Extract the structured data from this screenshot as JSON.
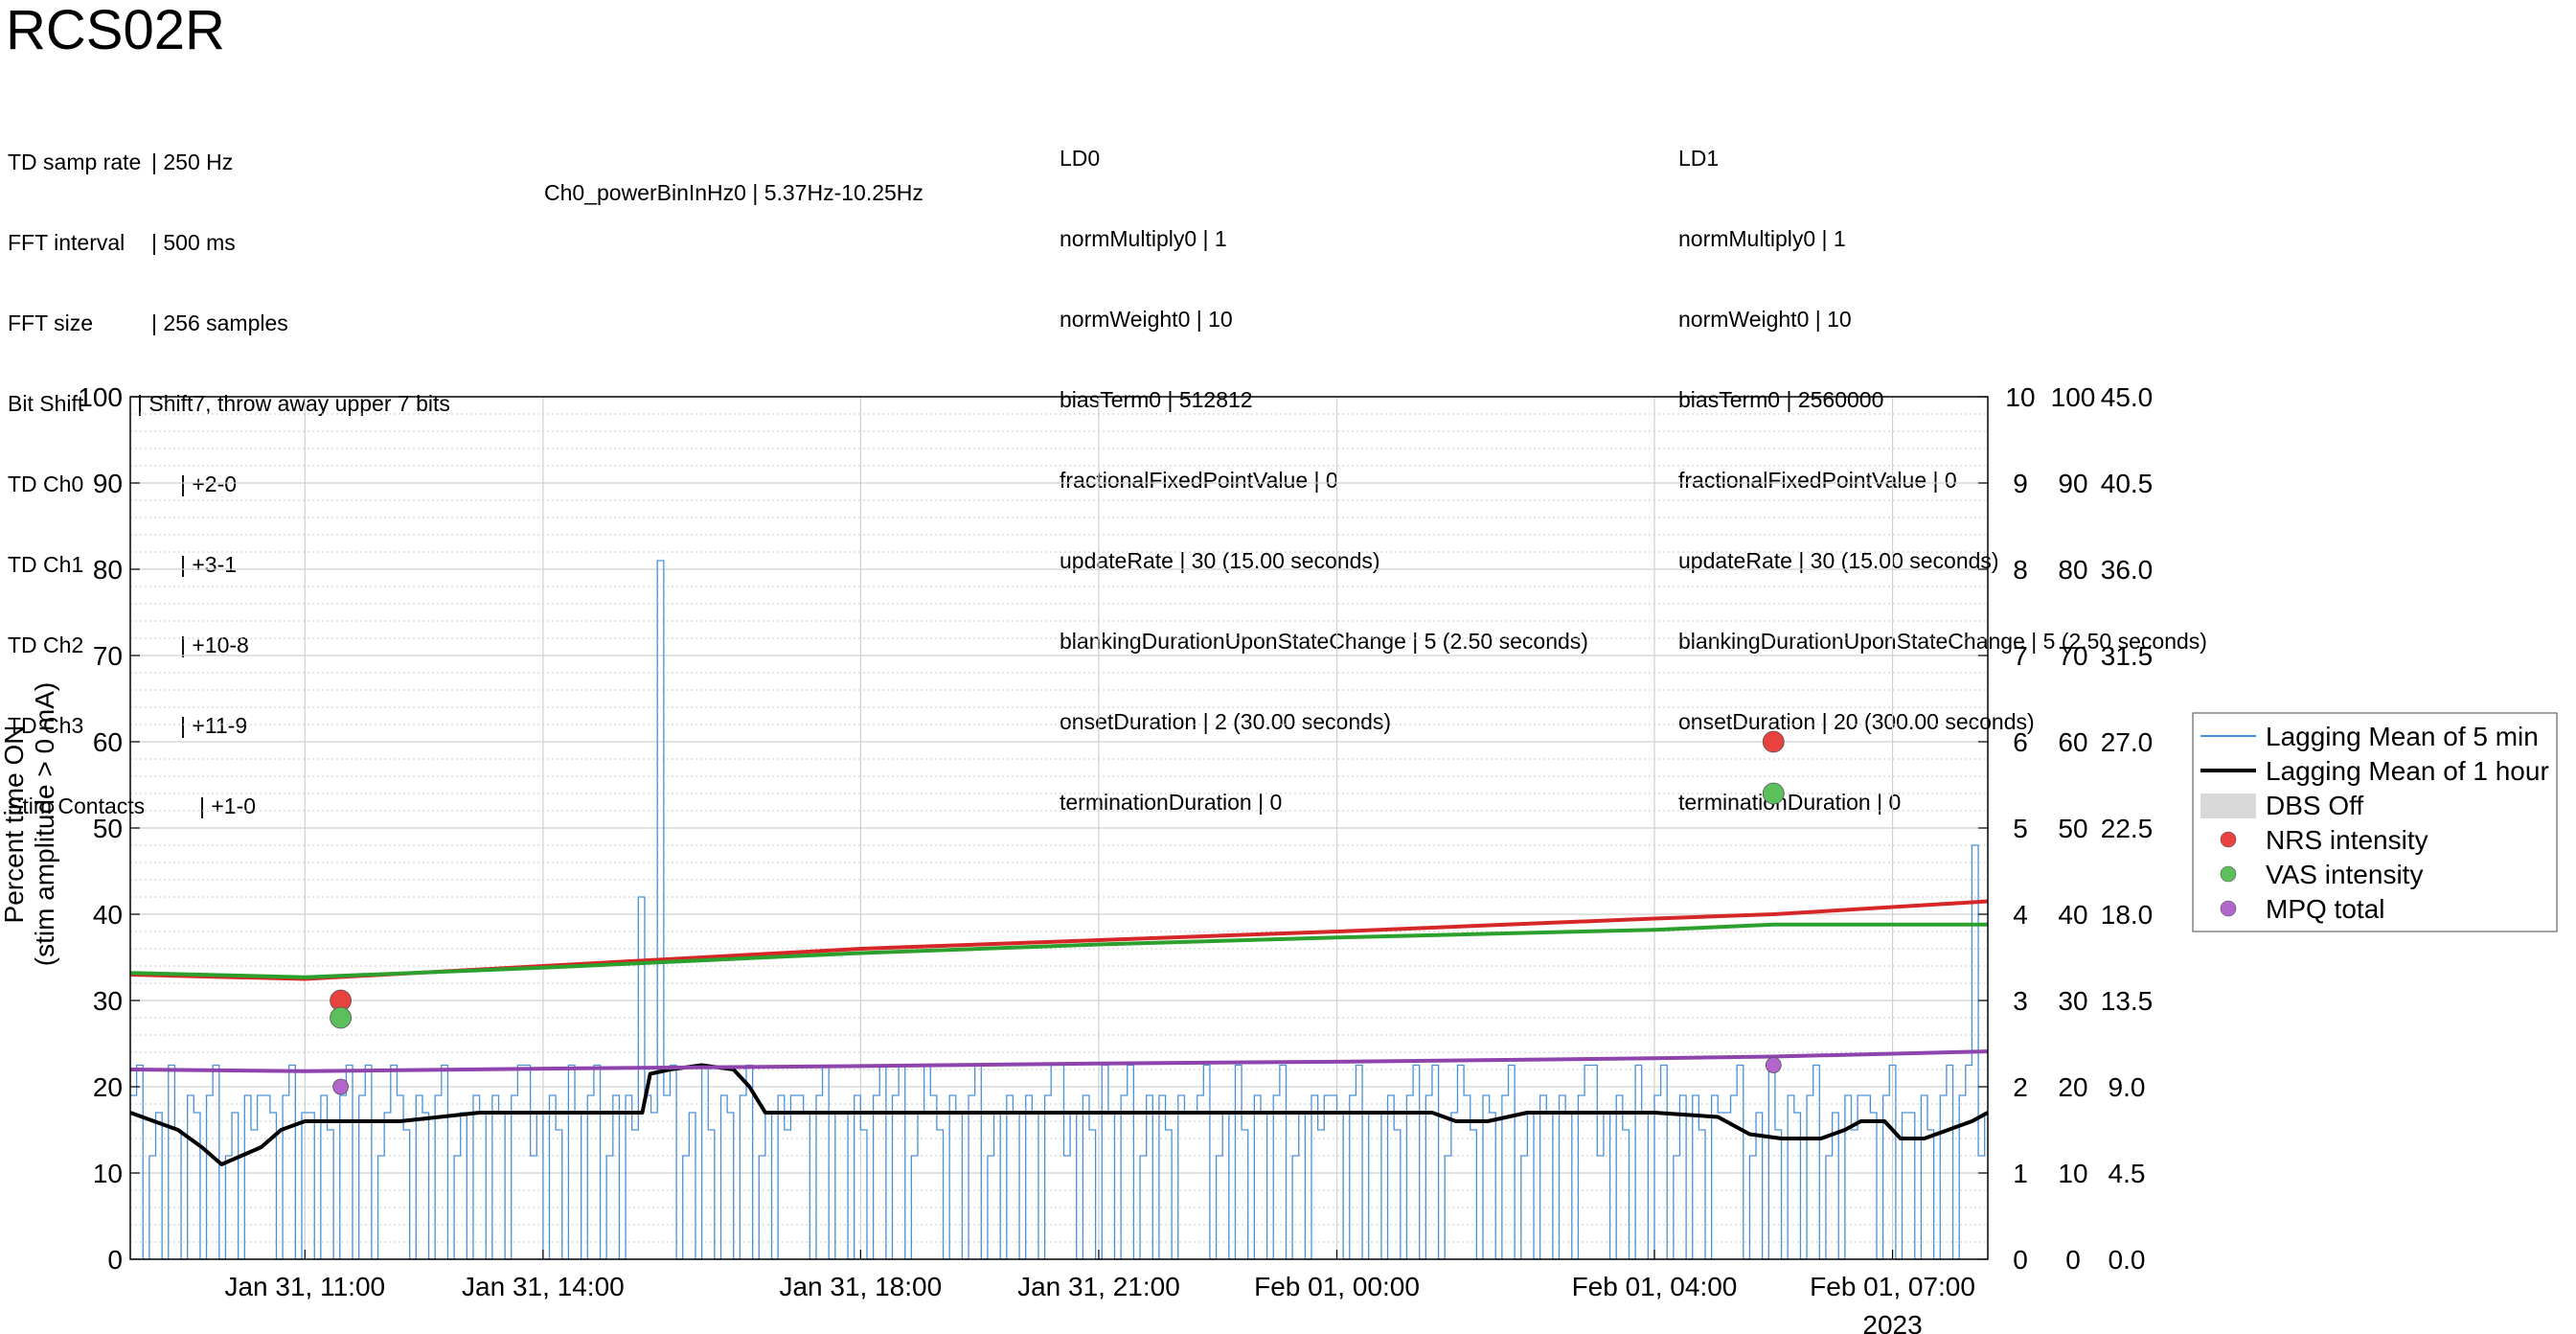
{
  "title": "RCS02R",
  "settings": [
    {
      "key": "TD samp rate",
      "value": "| 250 Hz"
    },
    {
      "key": "FFT interval",
      "value": "| 500 ms"
    },
    {
      "key": "FFT size",
      "value": "| 256 samples"
    },
    {
      "key": "Bit Shift",
      "value": "| Shift7, throw away upper 7 bits"
    },
    {
      "key": "TD Ch0",
      "value": "| +2-0"
    },
    {
      "key": "TD Ch1",
      "value": "| +3-1"
    },
    {
      "key": "TD Ch2",
      "value": "| +10-8"
    },
    {
      "key": "TD Ch3",
      "value": "| +11-9"
    },
    {
      "key": "Stim Contacts",
      "value": "| +1-0"
    }
  ],
  "power_band": "Ch0_powerBinInHz0 | 5.37Hz-10.25Hz",
  "ld0": {
    "header": "LD0",
    "lines": [
      "normMultiply0 | 1",
      "normWeight0 | 10",
      "biasTerm0 | 512812",
      "fractionalFixedPointValue | 0",
      "updateRate | 30 (15.00 seconds)",
      "blankingDurationUponStateChange | 5 (2.50 seconds)",
      "onsetDuration | 2 (30.00 seconds)",
      "terminationDuration | 0"
    ]
  },
  "ld1": {
    "header": "LD1",
    "lines": [
      "normMultiply0 | 1",
      "normWeight0 | 10",
      "biasTerm0 | 2560000",
      "fractionalFixedPointValue | 0",
      "updateRate | 30 (15.00 seconds)",
      "blankingDurationUponStateChange | 5 (2.50 seconds)",
      "onsetDuration | 20 (300.00 seconds)",
      "terminationDuration | 0"
    ]
  },
  "chart_data": {
    "type": "line",
    "ylabel": [
      "Percent time ON",
      "(stim amplitude > 0 mA)"
    ],
    "ylim": [
      0,
      100
    ],
    "yticks": [
      "0",
      "10",
      "20",
      "30",
      "40",
      "50",
      "60",
      "70",
      "80",
      "90",
      "100"
    ],
    "right_axes": [
      {
        "ticks": [
          "0",
          "1",
          "2",
          "3",
          "4",
          "5",
          "6",
          "7",
          "8",
          "9",
          "10"
        ]
      },
      {
        "ticks": [
          "0",
          "10",
          "20",
          "30",
          "40",
          "50",
          "60",
          "70",
          "80",
          "90",
          "100"
        ]
      },
      {
        "ticks": [
          "0.0",
          "4.5",
          "9.0",
          "13.5",
          "18.0",
          "22.5",
          "27.0",
          "31.5",
          "36.0",
          "40.5",
          "45.0"
        ]
      }
    ],
    "xlim": [
      8.8,
      32.2
    ],
    "xticks": [
      {
        "x": 11,
        "label": "Jan 31, 11:00"
      },
      {
        "x": 14,
        "label": "Jan 31, 14:00"
      },
      {
        "x": 18,
        "label": "Jan 31, 18:00"
      },
      {
        "x": 21,
        "label": "Jan 31, 21:00"
      },
      {
        "x": 24,
        "label": "Feb 01, 00:00"
      },
      {
        "x": 28,
        "label": "Feb 01, 04:00"
      },
      {
        "x": 31,
        "label": "Feb 01, 07:00"
      }
    ],
    "year_label": "2023",
    "grid": true,
    "legend_position": "right",
    "legend": [
      {
        "label": "Lagging Mean of 5 min",
        "kind": "line",
        "color": "#4a90d9"
      },
      {
        "label": "Lagging Mean of 1 hour",
        "kind": "thick-line",
        "color": "#000000"
      },
      {
        "label": "DBS Off",
        "kind": "patch",
        "color": "#d9d9d9"
      },
      {
        "label": "NRS intensity",
        "kind": "dot",
        "color": "#e8423f"
      },
      {
        "label": "VAS intensity",
        "kind": "dot",
        "color": "#5cbf5c"
      },
      {
        "label": "MPQ total",
        "kind": "dot",
        "color": "#b266cc"
      }
    ],
    "series": [
      {
        "name": "Lagging Mean of 1 hour",
        "color": "#000000",
        "points": [
          [
            8.8,
            17
          ],
          [
            9.1,
            16
          ],
          [
            9.4,
            15
          ],
          [
            9.7,
            13
          ],
          [
            9.95,
            11
          ],
          [
            10.2,
            12
          ],
          [
            10.45,
            13
          ],
          [
            10.7,
            15
          ],
          [
            11.0,
            16
          ],
          [
            11.4,
            16
          ],
          [
            11.8,
            16
          ],
          [
            12.2,
            16
          ],
          [
            12.7,
            16.5
          ],
          [
            13.2,
            17
          ],
          [
            13.8,
            17
          ],
          [
            14.3,
            17
          ],
          [
            14.8,
            17
          ],
          [
            15.25,
            17
          ],
          [
            15.35,
            21.5
          ],
          [
            15.6,
            22
          ],
          [
            16.0,
            22.5
          ],
          [
            16.4,
            22
          ],
          [
            16.6,
            20
          ],
          [
            16.8,
            17
          ],
          [
            17.5,
            17
          ],
          [
            18.5,
            17
          ],
          [
            19.5,
            17
          ],
          [
            20.5,
            17
          ],
          [
            21.5,
            17
          ],
          [
            22.5,
            17
          ],
          [
            23.5,
            17
          ],
          [
            24.5,
            17
          ],
          [
            25.2,
            17
          ],
          [
            25.5,
            16
          ],
          [
            25.9,
            16
          ],
          [
            26.4,
            17
          ],
          [
            27.2,
            17
          ],
          [
            28.0,
            17
          ],
          [
            28.8,
            16.5
          ],
          [
            29.2,
            14.5
          ],
          [
            29.6,
            14
          ],
          [
            30.1,
            14
          ],
          [
            30.4,
            15
          ],
          [
            30.6,
            16
          ],
          [
            30.9,
            16
          ],
          [
            31.1,
            14
          ],
          [
            31.4,
            14
          ],
          [
            31.7,
            15
          ],
          [
            32.0,
            16
          ],
          [
            32.2,
            17
          ]
        ]
      },
      {
        "name": "NRS trend",
        "color": "#d62728",
        "points": [
          [
            8.8,
            33
          ],
          [
            11.0,
            32.5
          ],
          [
            14.0,
            34
          ],
          [
            18.0,
            36
          ],
          [
            21.0,
            37
          ],
          [
            24.0,
            38
          ],
          [
            28.0,
            39.5
          ],
          [
            29.5,
            40
          ],
          [
            32.2,
            41.5
          ]
        ]
      },
      {
        "name": "VAS trend",
        "color": "#2ca02c",
        "points": [
          [
            8.8,
            33.2
          ],
          [
            11.0,
            32.7
          ],
          [
            14.0,
            33.8
          ],
          [
            18.0,
            35.5
          ],
          [
            21.0,
            36.5
          ],
          [
            24.0,
            37.3
          ],
          [
            28.0,
            38.2
          ],
          [
            29.5,
            38.8
          ],
          [
            32.2,
            38.8
          ]
        ]
      },
      {
        "name": "MPQ trend",
        "color": "#8e44ad",
        "points": [
          [
            8.8,
            22
          ],
          [
            11.0,
            21.8
          ],
          [
            14.0,
            22.1
          ],
          [
            18.0,
            22.4
          ],
          [
            21.0,
            22.7
          ],
          [
            24.0,
            22.9
          ],
          [
            28.0,
            23.3
          ],
          [
            29.5,
            23.5
          ],
          [
            32.2,
            24.1
          ]
        ]
      }
    ],
    "five_min_spikes": [
      {
        "x": 15.2,
        "y": 42
      },
      {
        "x": 15.45,
        "y": 81
      },
      {
        "x": 32.0,
        "y": 48
      }
    ],
    "points": [
      {
        "series": "NRS intensity",
        "x": 11.45,
        "y": 30,
        "color": "#e8423f"
      },
      {
        "series": "VAS intensity",
        "x": 11.45,
        "y": 28,
        "color": "#5cbf5c"
      },
      {
        "series": "MPQ total",
        "x": 11.45,
        "y": 20,
        "color": "#b266cc"
      },
      {
        "series": "NRS intensity",
        "x": 29.5,
        "y": 60,
        "color": "#e8423f"
      },
      {
        "series": "VAS intensity",
        "x": 29.5,
        "y": 54,
        "color": "#5cbf5c"
      },
      {
        "series": "MPQ total",
        "x": 29.5,
        "y": 22.5,
        "color": "#b266cc"
      }
    ]
  }
}
